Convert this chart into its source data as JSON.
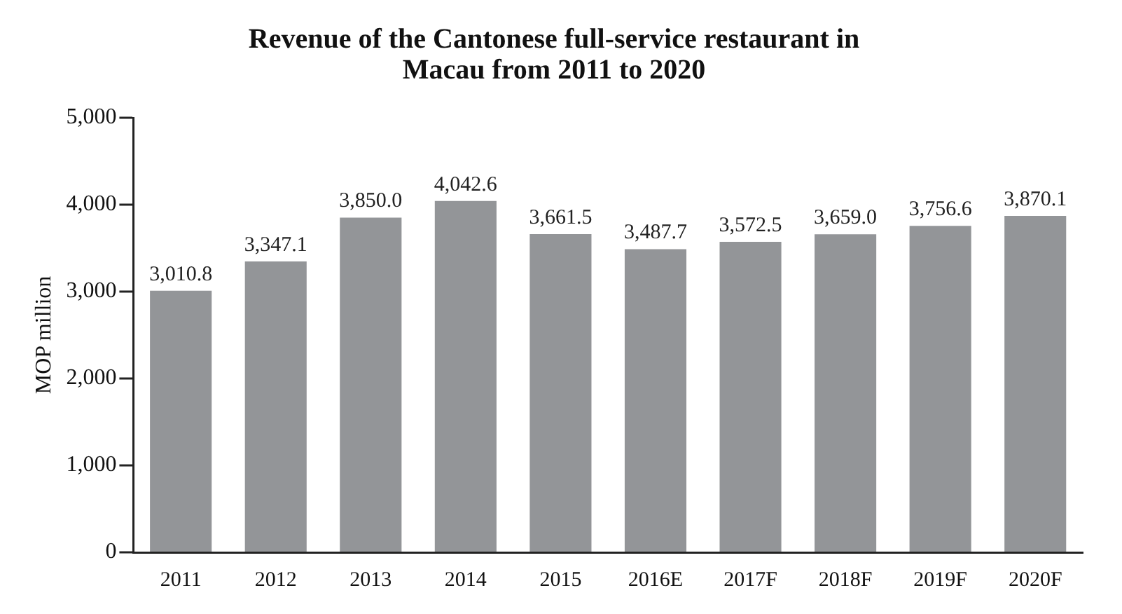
{
  "chart_data": {
    "type": "bar",
    "title": "Revenue of the Cantonese full-service restaurant in Macau from 2011 to 2020",
    "ylabel": "MOP million",
    "categories": [
      "2011",
      "2012",
      "2013",
      "2014",
      "2015",
      "2016E",
      "2017F",
      "2018F",
      "2019F",
      "2020F"
    ],
    "values": [
      3010.8,
      3347.1,
      3850.0,
      4042.6,
      3661.5,
      3487.7,
      3572.5,
      3659.0,
      3756.6,
      3870.1
    ],
    "value_labels": [
      "3,010.8",
      "3,347.1",
      "3,850.0",
      "4,042.6",
      "3,661.5",
      "3,487.7",
      "3,572.5",
      "3,659.0",
      "3,756.6",
      "3,870.1"
    ],
    "color": "#939598",
    "ylim": [
      0,
      5000
    ],
    "yticks": [
      0,
      {
        "value": 1000,
        "label": "1,000"
      },
      {
        "value": 2000,
        "label": "2,000"
      },
      {
        "value": 3000,
        "label": "3,000"
      },
      {
        "value": 4000,
        "label": "4,000"
      },
      {
        "value": 5000,
        "label": "5,000"
      }
    ],
    "grid": false,
    "legend": false
  }
}
